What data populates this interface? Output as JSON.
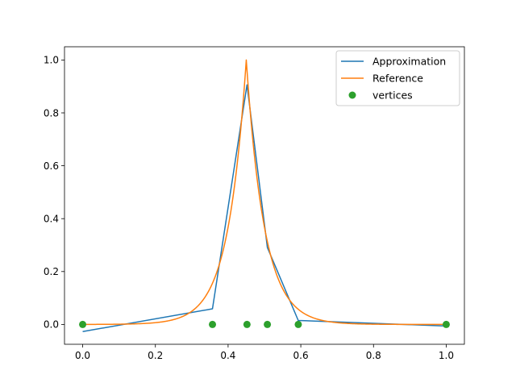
{
  "chart_data": {
    "type": "line",
    "title": "",
    "xlabel": "",
    "ylabel": "",
    "xlim": [
      -0.05,
      1.05
    ],
    "ylim": [
      -0.075,
      1.05
    ],
    "grid": false,
    "legend_position": "top-right",
    "x_ticks": [
      "0.0",
      "0.2",
      "0.4",
      "0.6",
      "0.8",
      "1.0"
    ],
    "y_ticks": [
      "0.0",
      "0.2",
      "0.4",
      "0.6",
      "0.8",
      "1.0"
    ],
    "series": [
      {
        "name": "Approximation",
        "kind": "line",
        "color": "#1f77b4",
        "x": [
          0.0,
          0.357,
          0.452,
          0.508,
          0.593,
          1.0
        ],
        "y": [
          -0.027,
          0.059,
          0.906,
          0.291,
          0.015,
          -0.006
        ]
      },
      {
        "name": "Reference",
        "kind": "curve",
        "color": "#ff7f0e",
        "function": "exp(-20*|x-0.45|)"
      },
      {
        "name": "vertices",
        "kind": "scatter",
        "color": "#2ca02c",
        "x": [
          0.0,
          0.357,
          0.452,
          0.508,
          0.593,
          1.0
        ],
        "y": [
          0.0,
          0.0,
          0.0,
          0.0,
          0.0,
          0.0
        ]
      }
    ]
  }
}
